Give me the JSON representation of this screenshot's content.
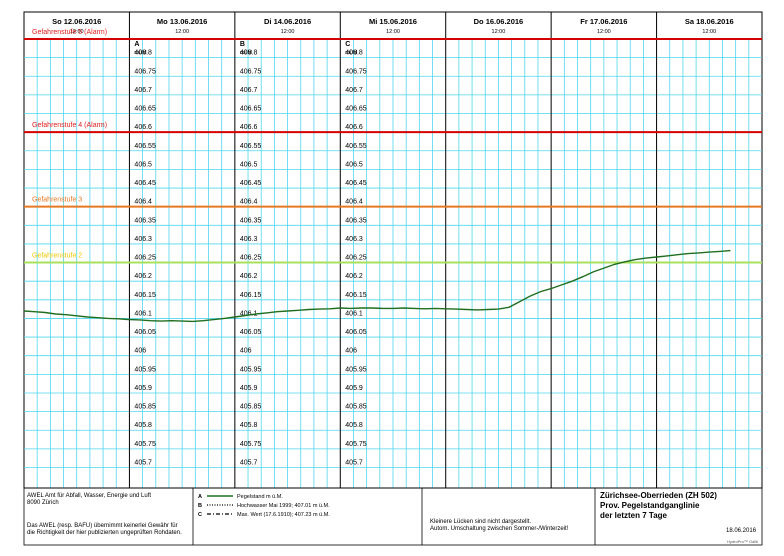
{
  "chart_data": {
    "type": "line",
    "title": "Zürichsee-Oberrieden (ZH 502)",
    "subtitle_lines": [
      "Prov. Pegelstandganglinie",
      "der letzten  7 Tage"
    ],
    "days": [
      {
        "label": "So  12.06.2016",
        "noon": "12:00"
      },
      {
        "label": "Mo  13.06.2016",
        "noon": "12:00"
      },
      {
        "label": "Di  14.06.2016",
        "noon": "12:00"
      },
      {
        "label": "Mi  15.06.2016",
        "noon": "12:00"
      },
      {
        "label": "Do  16.06.2016",
        "noon": "12:00"
      },
      {
        "label": "Fr  17.06.2016",
        "noon": "12:00"
      },
      {
        "label": "Sa  18.06.2016",
        "noon": "12:00"
      }
    ],
    "axes": [
      {
        "letter": "A",
        "unit": "müM"
      },
      {
        "letter": "B",
        "unit": "müM"
      },
      {
        "letter": "C",
        "unit": "müM"
      }
    ],
    "ylim": [
      405.7,
      406.85
    ],
    "y_ticks": [
      "406.8",
      "406.75",
      "406.7",
      "406.65",
      "406.6",
      "406.55",
      "406.5",
      "406.45",
      "406.4",
      "406.35",
      "406.3",
      "406.25",
      "406.2",
      "406.15",
      "406.1",
      "406.05",
      "406",
      "405.95",
      "405.9",
      "405.85",
      "405.8",
      "405.75",
      "405.7"
    ],
    "danger_levels": [
      {
        "label": "Gefahrenstufe 5 (Alarm)",
        "value": 406.85,
        "color": "#d40000",
        "text_color": "#e02020"
      },
      {
        "label": "Gefahrenstufe 4 (Alarm)",
        "value": 406.6,
        "color": "#d40000",
        "text_color": "#e02020"
      },
      {
        "label": "Gefahrenstufe 3",
        "value": 406.4,
        "color": "#e87722",
        "text_color": "#e87722"
      },
      {
        "label": "Gefahrenstufe 2",
        "value": 406.25,
        "color": "#a8e05c",
        "text_color": "#f0c800"
      }
    ],
    "series": [
      {
        "name": "Pegelstand m ü.M.",
        "color": "#1f6e1f",
        "points": [
          [
            0.0,
            406.12
          ],
          [
            0.1,
            406.118
          ],
          [
            0.2,
            406.116
          ],
          [
            0.3,
            406.112
          ],
          [
            0.4,
            406.11
          ],
          [
            0.5,
            406.107
          ],
          [
            0.6,
            406.104
          ],
          [
            0.7,
            406.102
          ],
          [
            0.8,
            406.1
          ],
          [
            0.9,
            406.099
          ],
          [
            1.0,
            406.097
          ],
          [
            1.1,
            406.096
          ],
          [
            1.2,
            406.094
          ],
          [
            1.3,
            406.093
          ],
          [
            1.4,
            406.094
          ],
          [
            1.5,
            406.093
          ],
          [
            1.6,
            406.092
          ],
          [
            1.7,
            406.094
          ],
          [
            1.8,
            406.097
          ],
          [
            1.9,
            406.1
          ],
          [
            2.0,
            406.104
          ],
          [
            2.1,
            406.108
          ],
          [
            2.2,
            406.112
          ],
          [
            2.3,
            406.115
          ],
          [
            2.4,
            406.118
          ],
          [
            2.5,
            406.12
          ],
          [
            2.6,
            406.122
          ],
          [
            2.7,
            406.124
          ],
          [
            2.8,
            406.125
          ],
          [
            2.9,
            406.126
          ],
          [
            3.0,
            406.128
          ],
          [
            3.1,
            406.127
          ],
          [
            3.2,
            406.128
          ],
          [
            3.3,
            406.128
          ],
          [
            3.4,
            406.127
          ],
          [
            3.5,
            406.127
          ],
          [
            3.6,
            406.128
          ],
          [
            3.7,
            406.127
          ],
          [
            3.8,
            406.126
          ],
          [
            3.9,
            406.127
          ],
          [
            4.0,
            406.126
          ],
          [
            4.1,
            406.125
          ],
          [
            4.2,
            406.124
          ],
          [
            4.3,
            406.123
          ],
          [
            4.4,
            406.124
          ],
          [
            4.5,
            406.125
          ],
          [
            4.6,
            406.13
          ],
          [
            4.7,
            406.145
          ],
          [
            4.8,
            406.16
          ],
          [
            4.9,
            406.172
          ],
          [
            5.0,
            406.18
          ],
          [
            5.1,
            406.19
          ],
          [
            5.2,
            406.2
          ],
          [
            5.3,
            406.212
          ],
          [
            5.4,
            406.225
          ],
          [
            5.5,
            406.235
          ],
          [
            5.6,
            406.245
          ],
          [
            5.7,
            406.252
          ],
          [
            5.8,
            406.258
          ],
          [
            5.9,
            406.262
          ],
          [
            6.0,
            406.265
          ],
          [
            6.1,
            406.268
          ],
          [
            6.2,
            406.271
          ],
          [
            6.3,
            406.274
          ],
          [
            6.4,
            406.276
          ],
          [
            6.5,
            406.278
          ],
          [
            6.6,
            406.28
          ],
          [
            6.7,
            406.282
          ]
        ]
      }
    ],
    "legend": [
      {
        "letter": "A",
        "style": "solid",
        "label": "Pegelstand m ü.M."
      },
      {
        "letter": "B",
        "style": "dotted",
        "label": "Hochwasser Mai 1999; 407.01 m ü.M."
      },
      {
        "letter": "C",
        "style": "dashdot",
        "label": "Max. Wert (17.6.1910); 407.23 m ü.M."
      }
    ],
    "grid": true
  },
  "footer": {
    "org_line1": "AWEL  Amt für Abfall, Wasser, Energie und Luft",
    "org_line2": "8090 Zürich",
    "disclaimer_line1": "Das AWEL (resp. BAFU) übernimmt keinerlei Gewähr für",
    "disclaimer_line2": "die Richtigkeit der hier publizierten ungeprüften Rohdaten.",
    "note_line1": "Kleinere Lücken sind nicht dargestellt.",
    "note_line2": "Autom. Umschaltung zwischen Sommer-/Winterzeit!",
    "date": "18.06.2016",
    "credit": "HydroPro™ GaBi"
  }
}
